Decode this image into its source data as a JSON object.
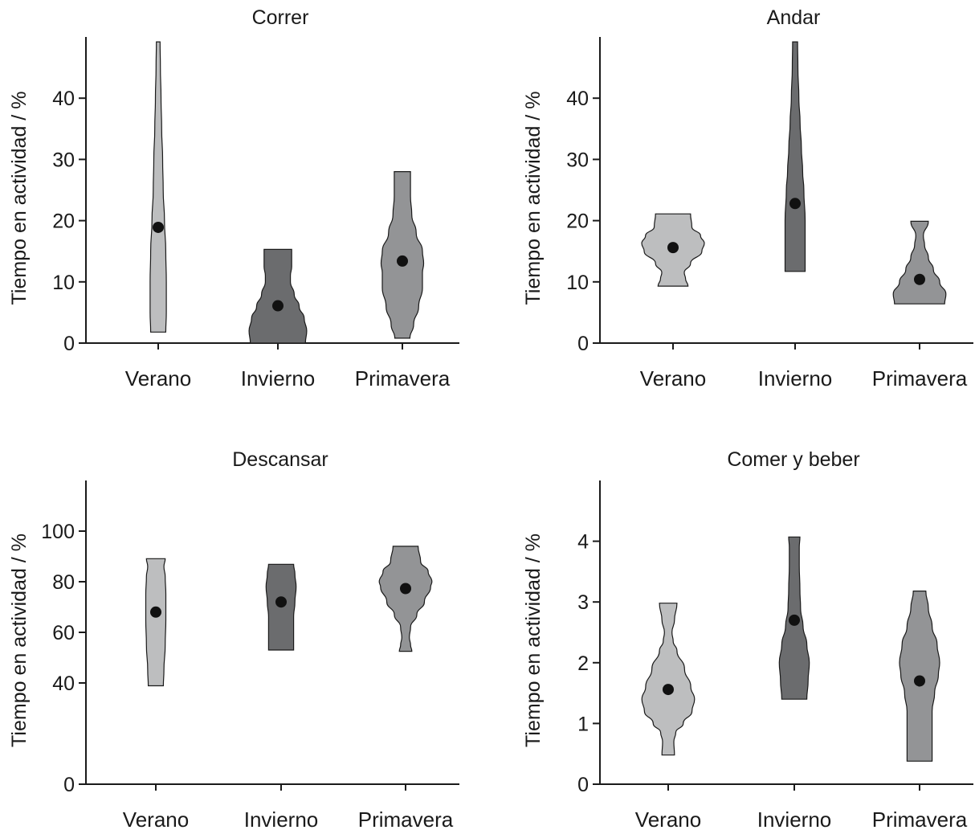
{
  "colors": {
    "Verano": "#bdbebf",
    "Invierno": "#6b6c6e",
    "Primavera": "#939496"
  },
  "chart_data": [
    {
      "type": "violin",
      "title": "Correr",
      "ylabel": "Tiempo en actividad / %",
      "xlabel": "",
      "ylim": [
        0,
        50
      ],
      "yticks": [
        0,
        10,
        20,
        30,
        40
      ],
      "categories": [
        "Verano",
        "Invierno",
        "Primavera"
      ],
      "series": [
        {
          "category": "Verano",
          "mean": 18.9,
          "min": 1.8,
          "max": 49.2,
          "profile": [
            [
              1.8,
              0.12
            ],
            [
              5,
              0.13
            ],
            [
              10,
              0.13
            ],
            [
              15,
              0.12
            ],
            [
              20,
              0.1
            ],
            [
              25,
              0.08
            ],
            [
              30,
              0.07
            ],
            [
              35,
              0.055
            ],
            [
              40,
              0.045
            ],
            [
              45,
              0.035
            ],
            [
              49.2,
              0.03
            ]
          ]
        },
        {
          "category": "Invierno",
          "mean": 6.1,
          "min": 0,
          "max": 15.3,
          "profile": [
            [
              0,
              0.44
            ],
            [
              2,
              0.46
            ],
            [
              4,
              0.42
            ],
            [
              6,
              0.34
            ],
            [
              8,
              0.26
            ],
            [
              10,
              0.2
            ],
            [
              11,
              0.2
            ],
            [
              12.5,
              0.22
            ],
            [
              15.3,
              0.22
            ]
          ]
        },
        {
          "category": "Primavera",
          "mean": 13.4,
          "min": 0.8,
          "max": 28.0,
          "profile": [
            [
              0.8,
              0.12
            ],
            [
              3,
              0.18
            ],
            [
              6,
              0.26
            ],
            [
              9,
              0.32
            ],
            [
              11.5,
              0.32
            ],
            [
              13,
              0.34
            ],
            [
              15,
              0.32
            ],
            [
              18,
              0.22
            ],
            [
              21,
              0.15
            ],
            [
              24,
              0.13
            ],
            [
              28,
              0.13
            ]
          ]
        }
      ]
    },
    {
      "type": "violin",
      "title": "Andar",
      "ylabel": "Tiempo en actividad / %",
      "xlabel": "",
      "ylim": [
        0,
        50
      ],
      "yticks": [
        0,
        10,
        20,
        30,
        40
      ],
      "categories": [
        "Verano",
        "Invierno",
        "Primavera"
      ],
      "series": [
        {
          "category": "Verano",
          "mean": 15.6,
          "min": 9.3,
          "max": 21.1,
          "profile": [
            [
              9.3,
              0.24
            ],
            [
              10.5,
              0.2
            ],
            [
              11.5,
              0.18
            ],
            [
              13,
              0.28
            ],
            [
              15,
              0.46
            ],
            [
              16.3,
              0.5
            ],
            [
              17.5,
              0.44
            ],
            [
              19,
              0.3
            ],
            [
              21.1,
              0.28
            ]
          ]
        },
        {
          "category": "Invierno",
          "mean": 22.8,
          "min": 11.7,
          "max": 49.2,
          "profile": [
            [
              11.7,
              0.16
            ],
            [
              15,
              0.16
            ],
            [
              20,
              0.16
            ],
            [
              25,
              0.14
            ],
            [
              28,
              0.12
            ],
            [
              32,
              0.1
            ],
            [
              36,
              0.08
            ],
            [
              40,
              0.06
            ],
            [
              45,
              0.045
            ],
            [
              49.2,
              0.04
            ]
          ]
        },
        {
          "category": "Primavera",
          "mean": 10.4,
          "min": 6.4,
          "max": 19.9,
          "profile": [
            [
              6.4,
              0.4
            ],
            [
              8,
              0.42
            ],
            [
              10,
              0.32
            ],
            [
              12,
              0.22
            ],
            [
              14,
              0.14
            ],
            [
              16,
              0.08
            ],
            [
              17.5,
              0.06
            ],
            [
              19.9,
              0.14
            ]
          ]
        }
      ]
    },
    {
      "type": "violin",
      "title": "Descansar",
      "ylabel": "Tiempo en actividad / %",
      "xlabel": "",
      "ylim": [
        0,
        120
      ],
      "yticks": [
        0,
        40,
        60,
        80,
        100
      ],
      "categories": [
        "Verano",
        "Invierno",
        "Primavera"
      ],
      "series": [
        {
          "category": "Verano",
          "mean": 68.0,
          "min": 38.9,
          "max": 89.1,
          "profile": [
            [
              38.9,
              0.12
            ],
            [
              45,
              0.13
            ],
            [
              55,
              0.15
            ],
            [
              65,
              0.16
            ],
            [
              75,
              0.16
            ],
            [
              82,
              0.15
            ],
            [
              86,
              0.13
            ],
            [
              89.1,
              0.15
            ]
          ]
        },
        {
          "category": "Invierno",
          "mean": 72.0,
          "min": 53.0,
          "max": 86.9,
          "profile": [
            [
              53,
              0.2
            ],
            [
              60,
              0.2
            ],
            [
              66,
              0.2
            ],
            [
              72,
              0.22
            ],
            [
              78,
              0.24
            ],
            [
              83,
              0.22
            ],
            [
              86.9,
              0.2
            ]
          ]
        },
        {
          "category": "Primavera",
          "mean": 77.3,
          "min": 52.5,
          "max": 94.0,
          "profile": [
            [
              52.5,
              0.1
            ],
            [
              55,
              0.08
            ],
            [
              58,
              0.06
            ],
            [
              62,
              0.08
            ],
            [
              67,
              0.18
            ],
            [
              72,
              0.3
            ],
            [
              78,
              0.4
            ],
            [
              80,
              0.42
            ],
            [
              84,
              0.36
            ],
            [
              88,
              0.24
            ],
            [
              94,
              0.2
            ]
          ]
        }
      ]
    },
    {
      "type": "violin",
      "title": "Comer y beber",
      "ylabel": "Tiempo en actividad / %",
      "xlabel": "",
      "ylim": [
        0,
        5
      ],
      "yticks": [
        0,
        1,
        2,
        3,
        4
      ],
      "categories": [
        "Verano",
        "Invierno",
        "Primavera"
      ],
      "series": [
        {
          "category": "Verano",
          "mean": 1.56,
          "min": 0.48,
          "max": 2.98,
          "profile": [
            [
              0.48,
              0.1
            ],
            [
              0.7,
              0.09
            ],
            [
              0.85,
              0.12
            ],
            [
              1.0,
              0.24
            ],
            [
              1.2,
              0.38
            ],
            [
              1.4,
              0.42
            ],
            [
              1.6,
              0.36
            ],
            [
              1.9,
              0.26
            ],
            [
              2.2,
              0.14
            ],
            [
              2.35,
              0.08
            ],
            [
              2.5,
              0.06
            ],
            [
              2.7,
              0.1
            ],
            [
              2.98,
              0.14
            ]
          ]
        },
        {
          "category": "Invierno",
          "mean": 2.7,
          "min": 1.4,
          "max": 4.07,
          "profile": [
            [
              1.4,
              0.2
            ],
            [
              1.7,
              0.22
            ],
            [
              2.0,
              0.24
            ],
            [
              2.3,
              0.2
            ],
            [
              2.6,
              0.14
            ],
            [
              2.9,
              0.1
            ],
            [
              3.2,
              0.09
            ],
            [
              3.6,
              0.08
            ],
            [
              3.9,
              0.08
            ],
            [
              4.07,
              0.09
            ]
          ]
        },
        {
          "category": "Primavera",
          "mean": 1.7,
          "min": 0.38,
          "max": 3.18,
          "profile": [
            [
              0.38,
              0.2
            ],
            [
              0.8,
              0.2
            ],
            [
              1.2,
              0.2
            ],
            [
              1.5,
              0.24
            ],
            [
              1.8,
              0.3
            ],
            [
              2.0,
              0.32
            ],
            [
              2.3,
              0.28
            ],
            [
              2.6,
              0.2
            ],
            [
              2.9,
              0.14
            ],
            [
              3.18,
              0.1
            ]
          ]
        }
      ]
    }
  ]
}
